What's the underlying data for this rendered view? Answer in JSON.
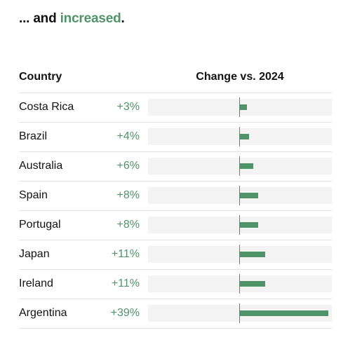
{
  "headline": {
    "prefix": "... and ",
    "accent": "increased",
    "suffix": "."
  },
  "table": {
    "header_country": "Country",
    "header_change": "Change vs. 2024",
    "max_value": 39,
    "rows": [
      {
        "country": "Costa Rica",
        "change": "+3%",
        "value": 3
      },
      {
        "country": "Brazil",
        "change": "+4%",
        "value": 4
      },
      {
        "country": "Australia",
        "change": "+6%",
        "value": 6
      },
      {
        "country": "Spain",
        "change": "+8%",
        "value": 8
      },
      {
        "country": "Portugal",
        "change": "+8%",
        "value": 8
      },
      {
        "country": "Japan",
        "change": "+11%",
        "value": 11
      },
      {
        "country": "Ireland",
        "change": "+11%",
        "value": 11
      },
      {
        "country": "Argentina",
        "change": "+39%",
        "value": 39
      }
    ]
  },
  "colors": {
    "accent": "#4f9468",
    "track": "#f3f3f3",
    "axis": "#777777",
    "text": "#121212"
  }
}
